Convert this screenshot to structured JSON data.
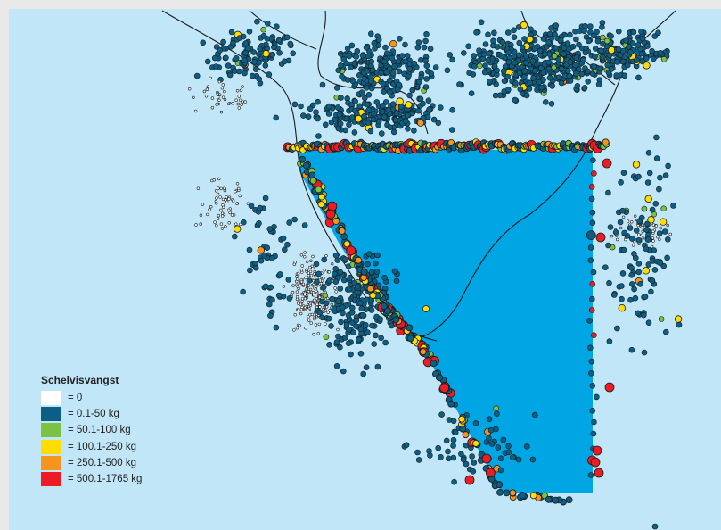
{
  "map": {
    "colors": {
      "sea": "#c1e6f8",
      "frame": "#e9e9e9",
      "closed_area": "#00a5e3",
      "contour": "#1a1a1a",
      "outline": "#1a1a1a"
    }
  },
  "legend": {
    "title": "Schelvisvangst",
    "items": [
      {
        "label": "= 0",
        "color": "#ffffff"
      },
      {
        "label": "= 0.1-50 kg",
        "color": "#0b5f85"
      },
      {
        "label": "= 50.1-100 kg",
        "color": "#7cc242"
      },
      {
        "label": "= 100.1-250 kg",
        "color": "#ffdd00"
      },
      {
        "label": "= 250.1-500 kg",
        "color": "#f7941d"
      },
      {
        "label": "= 500.1-1765 kg",
        "color": "#ed1c24"
      }
    ]
  }
}
